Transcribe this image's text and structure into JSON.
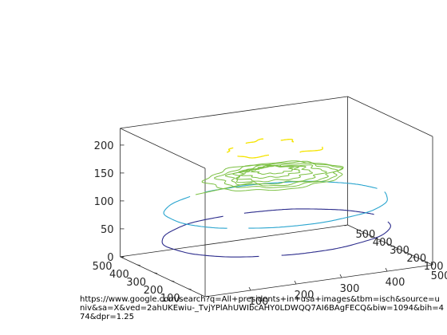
{
  "chart_data": {
    "type": "contour3",
    "title": "",
    "xlabel": "",
    "ylabel": "",
    "zlabel": "",
    "xlim": [
      0,
      500
    ],
    "ylim": [
      0,
      500
    ],
    "zlim": [
      0,
      230
    ],
    "x_ticks": [
      100,
      200,
      300,
      400,
      500
    ],
    "y_ticks": [
      100,
      200,
      300,
      400,
      500
    ],
    "z_ticks": [
      0,
      50,
      100,
      150,
      200
    ],
    "grid": false,
    "legend": "none",
    "colors": {
      "level_low": "#2c2c8c",
      "level_mid": "#2aa5cf",
      "level_high": "#7cc043",
      "level_top": "#f5e400",
      "axes": "#262626"
    },
    "levels": [
      {
        "z": 50,
        "color": "#2c2c8c",
        "shape": "ring",
        "center": [
          250,
          250
        ],
        "radius": 235
      },
      {
        "z": 100,
        "color": "#2aa5cf",
        "shape": "ring",
        "center": [
          250,
          250
        ],
        "radius": 230
      },
      {
        "z": 150,
        "color": "#7cc043",
        "shape": "blob",
        "center": [
          250,
          250
        ],
        "radius": 140
      },
      {
        "z": 200,
        "color": "#f5e400",
        "shape": "fragments",
        "center": [
          250,
          250
        ],
        "radius": 110
      }
    ],
    "caption": "https://www.google.com/search?q=All+presidents+in+usa+images&tbm=isch&source=univ&sa=X&ved=2ahUKEwiu-_TvjYPlAhUWIbcAHY0LDWQQ7AI6BAgFECQ&biw=1094&bih=474&dpr=1.25"
  }
}
